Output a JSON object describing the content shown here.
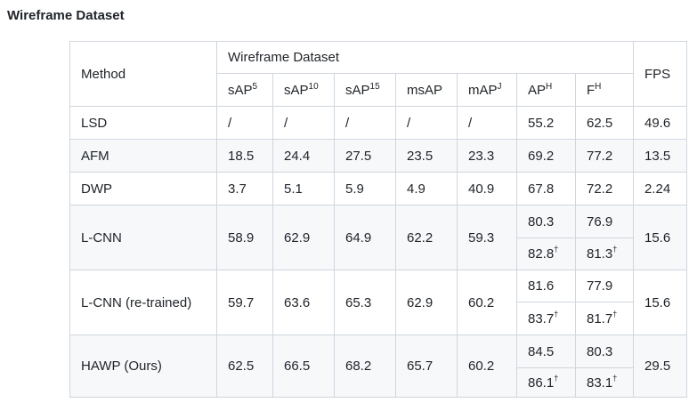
{
  "heading": "Wireframe Dataset",
  "header": {
    "method": "Method",
    "group": "Wireframe Dataset",
    "fps": "FPS",
    "cols": [
      {
        "base": "sAP",
        "sup": "5"
      },
      {
        "base": "sAP",
        "sup": "10"
      },
      {
        "base": "sAP",
        "sup": "15"
      },
      {
        "base": "msAP",
        "sup": ""
      },
      {
        "base": "mAP",
        "sup": "J"
      },
      {
        "base": "AP",
        "sup": "H"
      },
      {
        "base": "F",
        "sup": "H"
      }
    ]
  },
  "rows": {
    "lsd": {
      "method": "LSD",
      "sap5": "/",
      "sap10": "/",
      "sap15": "/",
      "msap": "/",
      "mapj": "/",
      "aph": "55.2",
      "fh": "62.5",
      "fps": "49.6"
    },
    "afm": {
      "method": "AFM",
      "sap5": "18.5",
      "sap10": "24.4",
      "sap15": "27.5",
      "msap": "23.5",
      "mapj": "23.3",
      "aph": "69.2",
      "fh": "77.2",
      "fps": "13.5"
    },
    "dwp": {
      "method": "DWP",
      "sap5": "3.7",
      "sap10": "5.1",
      "sap15": "5.9",
      "msap": "4.9",
      "mapj": "40.9",
      "aph": "67.8",
      "fh": "72.2",
      "fps": "2.24"
    },
    "lcnn": {
      "method": "L-CNN",
      "sap5": "58.9",
      "sap10": "62.9",
      "sap15": "64.9",
      "msap": "62.2",
      "mapj": "59.3",
      "aph": "80.3",
      "fh": "76.9",
      "aph2": "82.8",
      "fh2": "81.3",
      "fps": "15.6"
    },
    "lcnn_rt": {
      "method": "L-CNN (re-trained)",
      "sap5": "59.7",
      "sap10": "63.6",
      "sap15": "65.3",
      "msap": "62.9",
      "mapj": "60.2",
      "aph": "81.6",
      "fh": "77.9",
      "aph2": "83.7",
      "fh2": "81.7",
      "fps": "15.6"
    },
    "hawp": {
      "method": "HAWP (Ours)",
      "sap5": "62.5",
      "sap10": "66.5",
      "sap15": "68.2",
      "msap": "65.7",
      "mapj": "60.2",
      "aph": "84.5",
      "fh": "80.3",
      "aph2": "86.1",
      "fh2": "83.1",
      "fps": "29.5"
    }
  },
  "dagger": "†"
}
